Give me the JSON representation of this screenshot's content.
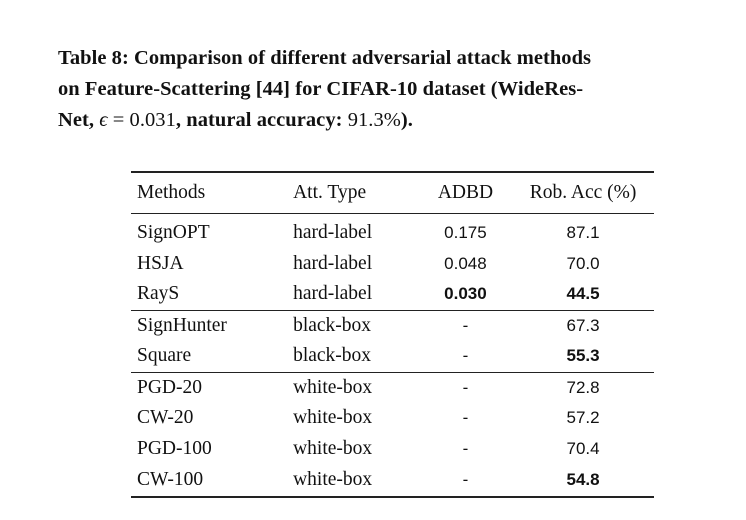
{
  "caption": {
    "line1": "Table 8: Comparison of different adversarial attack methods",
    "line2": "on Feature-Scattering [44] for CIFAR-10 dataset (WideRes-",
    "line3_prefix": "Net, ",
    "line3_eps": "ϵ",
    "line3_eq": " = ",
    "line3_eps_value": "0.031",
    "line3_mid": ", natural accuracy: ",
    "line3_acc_value": "91.3%",
    "line3_suffix": ")."
  },
  "table": {
    "headers": {
      "method": "Methods",
      "type": "Att. Type",
      "adbd": "ADBD",
      "acc": "Rob. Acc (%)"
    },
    "rows": [
      {
        "method": "SignOPT",
        "type": "hard-label",
        "adbd": "0.175",
        "acc": "87.1"
      },
      {
        "method": "HSJA",
        "type": "hard-label",
        "adbd": "0.048",
        "acc": "70.0"
      },
      {
        "method": "RayS",
        "type": "hard-label",
        "adbd": "0.030",
        "acc": "44.5"
      },
      {
        "method": "SignHunter",
        "type": "black-box",
        "adbd": "-",
        "acc": "67.3"
      },
      {
        "method": "Square",
        "type": "black-box",
        "adbd": "-",
        "acc": "55.3"
      },
      {
        "method": "PGD-20",
        "type": "white-box",
        "adbd": "-",
        "acc": "72.8"
      },
      {
        "method": "CW-20",
        "type": "white-box",
        "adbd": "-",
        "acc": "57.2"
      },
      {
        "method": "PGD-100",
        "type": "white-box",
        "adbd": "-",
        "acc": "70.4"
      },
      {
        "method": "CW-100",
        "type": "white-box",
        "adbd": "-",
        "acc": "54.8"
      }
    ]
  }
}
